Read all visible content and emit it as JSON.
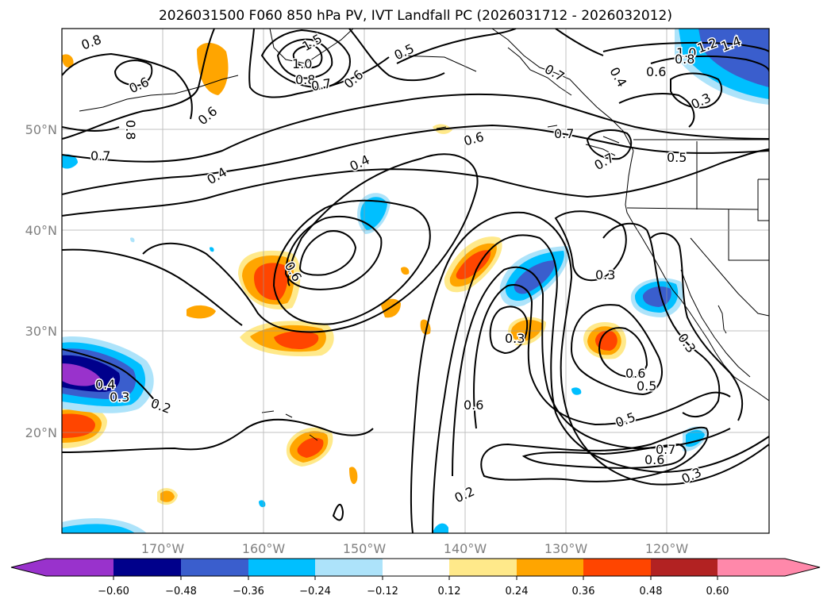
{
  "title": "2026031500 F060 850 hPa PV, IVT Landfall PC (2026031712 - 2026032012)",
  "map": {
    "lon_labels": [
      "170°W",
      "160°W",
      "150°W",
      "140°W",
      "130°W",
      "120°W"
    ],
    "lat_labels": [
      "50°N",
      "40°N",
      "30°N",
      "20°N"
    ],
    "contour_labels": [
      "0.8",
      "0.6",
      "1.5",
      "1.0",
      "0.8",
      "0.7",
      "0.6",
      "0.5",
      "0.7",
      "1.0",
      "0.8",
      "0.6",
      "0.3",
      "0.4",
      "1.2",
      "1.4",
      "0.8",
      "0.6",
      "0.7",
      "0.4",
      "0.4",
      "0.6",
      "0.7",
      "0.7",
      "0.5",
      "0.6",
      "0.3",
      "0.3",
      "0.6",
      "0.5",
      "0.3",
      "0.6",
      "0.5",
      "0.6",
      "0.7",
      "0.3",
      "0.2",
      "0.4",
      "0.2",
      "0.3"
    ]
  },
  "colorbar": {
    "ticks": [
      "−0.60",
      "−0.48",
      "−0.36",
      "−0.24",
      "−0.12",
      "0.12",
      "0.24",
      "0.36",
      "0.48",
      "0.60"
    ],
    "colors": [
      "#9932CC",
      "#00008B",
      "#3A5ECD",
      "#00BFFF",
      "#ADE3FA",
      "#FFFFFF",
      "#FFE98A",
      "#FFA500",
      "#FF4500",
      "#B22222",
      "#FF88AA"
    ]
  }
}
